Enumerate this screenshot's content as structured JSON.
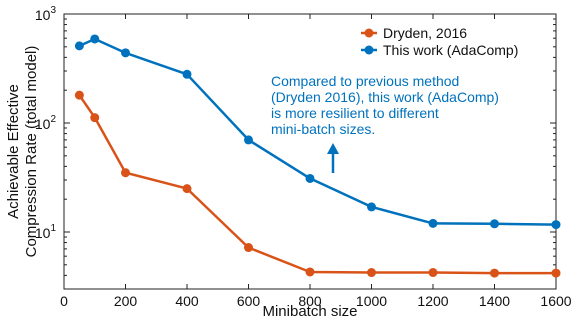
{
  "chart_data": {
    "type": "line",
    "xlabel": "Minibatch size",
    "ylabel_lines": [
      "Achievable Effective",
      "Compression Rate (total model)"
    ],
    "xlim": [
      0,
      1600
    ],
    "ylim": [
      3,
      1000
    ],
    "yscale": "log",
    "x_ticks": [
      0,
      200,
      400,
      600,
      800,
      1000,
      1200,
      1400,
      1600
    ],
    "x_tick_labels": [
      "0",
      "200",
      "400",
      "600",
      "800",
      "1000",
      "1200",
      "1400",
      "1600"
    ],
    "y_ticks": [
      10,
      100,
      1000
    ],
    "y_tick_labels": [
      {
        "base": "10",
        "exp": "1"
      },
      {
        "base": "10",
        "exp": "2"
      },
      {
        "base": "10",
        "exp": "3"
      }
    ],
    "grid": false,
    "legend_placement": "top-right",
    "series": [
      {
        "name": "Dryden, 2016",
        "color": "#d95319",
        "x": [
          50,
          100,
          200,
          400,
          600,
          800,
          1000,
          1200,
          1400,
          1600
        ],
        "y": [
          180,
          112,
          35,
          25,
          7.2,
          4.3,
          4.25,
          4.25,
          4.2,
          4.2
        ]
      },
      {
        "name": "This work (AdaComp)",
        "color": "#0072bd",
        "x": [
          50,
          100,
          200,
          400,
          600,
          800,
          1000,
          1200,
          1400,
          1600
        ],
        "y": [
          510,
          590,
          440,
          280,
          70,
          31,
          17,
          12,
          11.9,
          11.7
        ]
      }
    ],
    "annotation": {
      "lines": [
        "Compared to previous method",
        "(Dryden 2016), this work (AdaComp)",
        "is more resilient to different",
        "mini-batch sizes."
      ],
      "color": "#0072bd",
      "arrow": "up"
    }
  }
}
